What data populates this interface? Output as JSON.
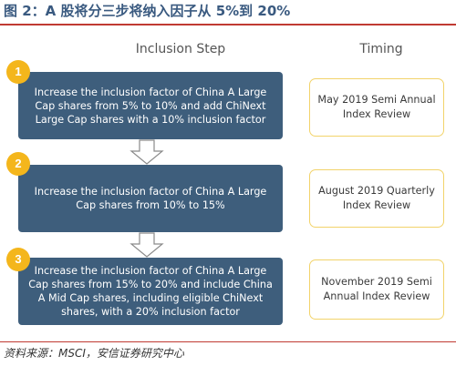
{
  "figure_title": "图 2：A 股将分三步将纳入因子从 5%到 20%",
  "headers": {
    "inclusion_step": "Inclusion Step",
    "timing": "Timing"
  },
  "steps": [
    {
      "number": "1",
      "lines": [
        "Increase the inclusion factor of China A Large",
        "Cap shares from 5% to 10% and add ChiNext",
        "Large Cap shares with a 10% inclusion factor"
      ],
      "timing_lines": [
        "May 2019 Semi Annual",
        "Index Review"
      ]
    },
    {
      "number": "2",
      "lines": [
        "Increase the inclusion factor of China A Large",
        "Cap shares from 10% to 15%"
      ],
      "timing_lines": [
        "August 2019 Quarterly",
        "Index Review"
      ]
    },
    {
      "number": "3",
      "lines": [
        "Increase the inclusion factor of China A Large",
        "Cap shares from 15% to 20% and include China",
        "A Mid Cap shares, including eligible ChiNext",
        "shares, with a 20% inclusion factor"
      ],
      "timing_lines": [
        "November 2019 Semi",
        "Annual Index Review"
      ]
    }
  ],
  "source": "资料来源：MSCI，安信证券研究中心",
  "colors": {
    "step_fill": "#3e5e7c",
    "badge": "#f4b61c",
    "timing_border": "#f2d36a",
    "accent_rule": "#c03a32"
  }
}
